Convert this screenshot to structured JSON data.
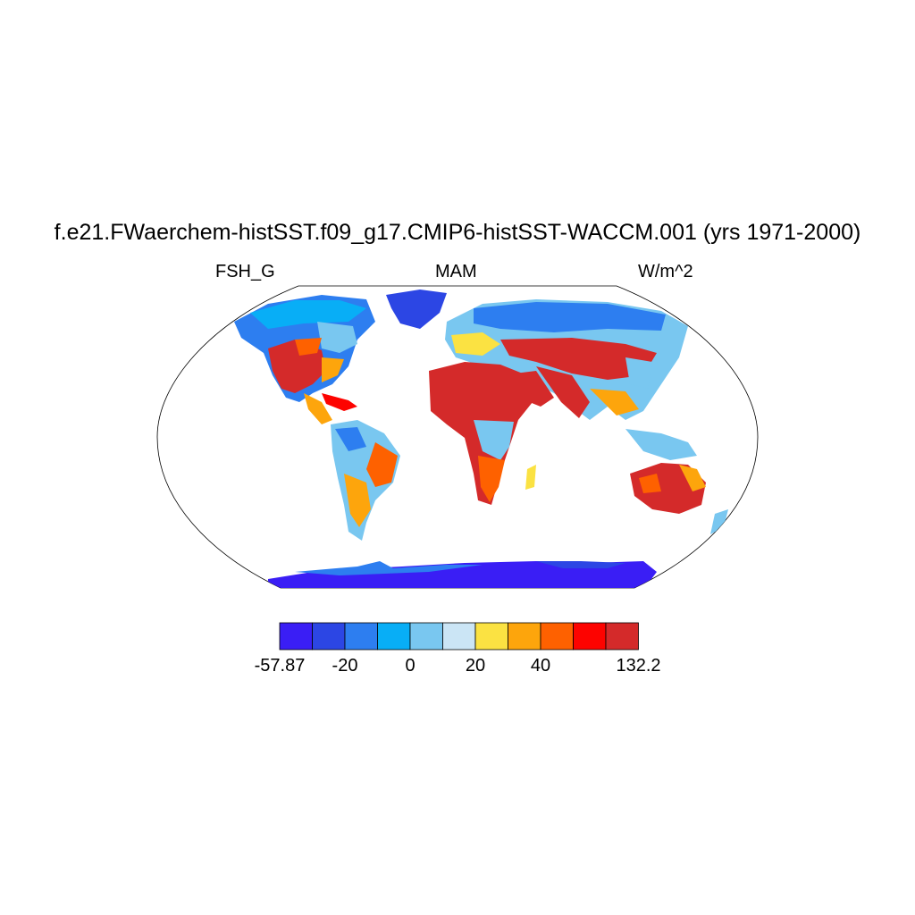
{
  "title": "f.e21.FWaerchem-histSST.f09_g17.CMIP6-histSST-WACCM.001 (yrs 1971-2000)",
  "subtitle_left": "FSH_G",
  "subtitle_center": "MAM",
  "subtitle_right": "W/m^2",
  "colorbar": {
    "colors": [
      "#3a1ef5",
      "#2c46e4",
      "#2d7ef0",
      "#08aef6",
      "#79c7f0",
      "#cbe5f5",
      "#fbe242",
      "#fda50c",
      "#fe6100",
      "#fd0300",
      "#d42a2a"
    ],
    "labels": [
      "-57.87",
      "-20",
      "0",
      "20",
      "40",
      "132.2"
    ],
    "label_bins": [
      0,
      2,
      4,
      6,
      8,
      11
    ]
  }
}
